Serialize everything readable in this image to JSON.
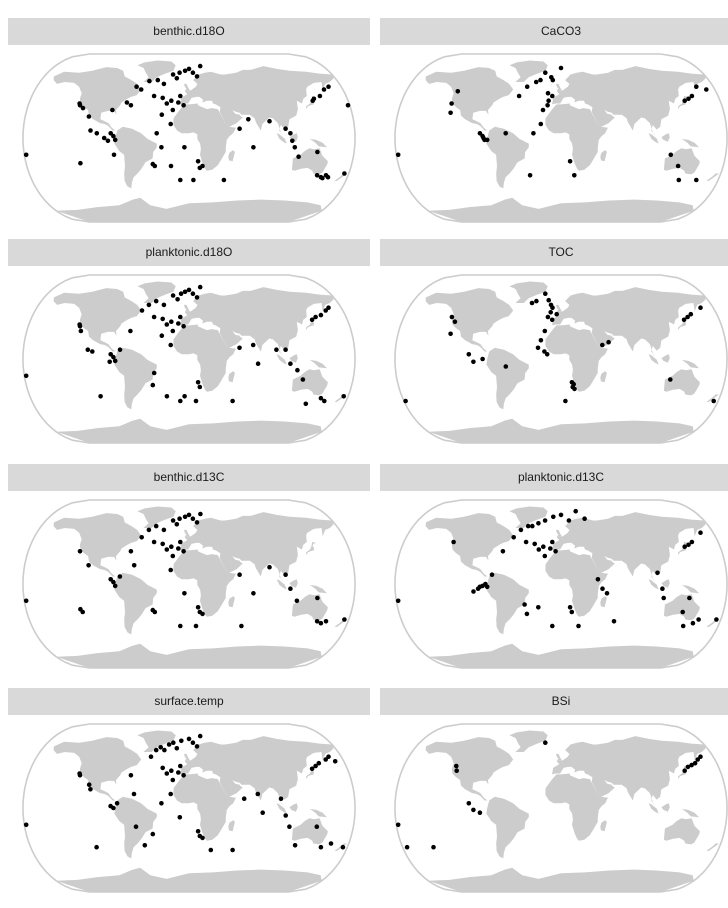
{
  "panels": [
    {
      "title": "benthic.d18O",
      "points": [
        [
          -123,
          37
        ],
        [
          -122,
          35
        ],
        [
          -118,
          32
        ],
        [
          -178,
          -18
        ],
        [
          -120,
          -27
        ],
        [
          -85,
          30
        ],
        [
          -62,
          55
        ],
        [
          -56,
          52
        ],
        [
          -48,
          61
        ],
        [
          -38,
          62
        ],
        [
          -30,
          58
        ],
        [
          -20,
          68
        ],
        [
          -15,
          64
        ],
        [
          -12,
          70
        ],
        [
          -5,
          72
        ],
        [
          0,
          74
        ],
        [
          5,
          70
        ],
        [
          10,
          66
        ],
        [
          15,
          77
        ],
        [
          -40,
          45
        ],
        [
          -30,
          43
        ],
        [
          -25,
          37
        ],
        [
          -20,
          40
        ],
        [
          -12,
          38
        ],
        [
          -6,
          35
        ],
        [
          -10,
          45
        ],
        [
          -18,
          30
        ],
        [
          -30,
          25
        ],
        [
          -20,
          15
        ],
        [
          -65,
          35
        ],
        [
          -70,
          38
        ],
        [
          -110,
          23
        ],
        [
          -107,
          8
        ],
        [
          -100,
          5
        ],
        [
          -85,
          5
        ],
        [
          -82,
          2
        ],
        [
          -80,
          -2
        ],
        [
          -88,
          -3
        ],
        [
          -92,
          0
        ],
        [
          -82,
          -18
        ],
        [
          -35,
          5
        ],
        [
          -30,
          -10
        ],
        [
          -40,
          -28
        ],
        [
          -38,
          -30
        ],
        [
          -20,
          -30
        ],
        [
          -5,
          -10
        ],
        [
          10,
          -25
        ],
        [
          15,
          -30
        ],
        [
          12,
          -32
        ],
        [
          5,
          -45
        ],
        [
          -10,
          -45
        ],
        [
          40,
          -45
        ],
        [
          55,
          10
        ],
        [
          65,
          20
        ],
        [
          70,
          -10
        ],
        [
          88,
          18
        ],
        [
          105,
          10
        ],
        [
          110,
          5
        ],
        [
          112,
          -3
        ],
        [
          115,
          -10
        ],
        [
          120,
          -20
        ],
        [
          140,
          -15
        ],
        [
          145,
          -40
        ],
        [
          150,
          -42
        ],
        [
          152,
          -43
        ],
        [
          155,
          -40
        ],
        [
          158,
          -42
        ],
        [
          175,
          -38
        ],
        [
          140,
          40
        ],
        [
          142,
          42
        ],
        [
          150,
          45
        ],
        [
          158,
          52
        ],
        [
          165,
          55
        ],
        [
          178,
          35
        ]
      ]
    },
    {
      "title": "CaCO3",
      "points": [
        [
          -123,
          37
        ],
        [
          -120,
          50
        ],
        [
          -122,
          27
        ],
        [
          -178,
          -18
        ],
        [
          -88,
          5
        ],
        [
          -85,
          2
        ],
        [
          -84,
          0
        ],
        [
          -83,
          -2
        ],
        [
          -80,
          -2
        ],
        [
          -60,
          5
        ],
        [
          -48,
          45
        ],
        [
          -40,
          55
        ],
        [
          -30,
          60
        ],
        [
          -25,
          62
        ],
        [
          -20,
          70
        ],
        [
          -12,
          65
        ],
        [
          -10,
          62
        ],
        [
          0,
          75
        ],
        [
          -15,
          48
        ],
        [
          -10,
          45
        ],
        [
          -14,
          40
        ],
        [
          -15,
          35
        ],
        [
          -20,
          30
        ],
        [
          -22,
          15
        ],
        [
          -30,
          5
        ],
        [
          10,
          -25
        ],
        [
          15,
          -40
        ],
        [
          -35,
          -40
        ],
        [
          120,
          -18
        ],
        [
          130,
          -30
        ],
        [
          135,
          -45
        ],
        [
          155,
          -45
        ],
        [
          140,
          40
        ],
        [
          145,
          42
        ],
        [
          150,
          45
        ],
        [
          160,
          55
        ],
        [
          170,
          52
        ]
      ]
    },
    {
      "title": "planktonic.d18O",
      "points": [
        [
          -123,
          37
        ],
        [
          -122,
          35
        ],
        [
          -120,
          30
        ],
        [
          -178,
          -18
        ],
        [
          -100,
          -40
        ],
        [
          -110,
          10
        ],
        [
          -105,
          8
        ],
        [
          -85,
          5
        ],
        [
          -82,
          2
        ],
        [
          -80,
          -2
        ],
        [
          -86,
          -3
        ],
        [
          -75,
          10
        ],
        [
          -65,
          30
        ],
        [
          -55,
          52
        ],
        [
          -48,
          58
        ],
        [
          -40,
          62
        ],
        [
          -30,
          58
        ],
        [
          -20,
          68
        ],
        [
          -14,
          64
        ],
        [
          -10,
          70
        ],
        [
          -5,
          72
        ],
        [
          0,
          74
        ],
        [
          5,
          70
        ],
        [
          10,
          66
        ],
        [
          15,
          77
        ],
        [
          -40,
          45
        ],
        [
          -30,
          43
        ],
        [
          -25,
          37
        ],
        [
          -20,
          40
        ],
        [
          -12,
          38
        ],
        [
          -6,
          35
        ],
        [
          -10,
          45
        ],
        [
          -18,
          30
        ],
        [
          -30,
          25
        ],
        [
          -20,
          15
        ],
        [
          -38,
          -15
        ],
        [
          -40,
          -28
        ],
        [
          -25,
          -40
        ],
        [
          -10,
          -45
        ],
        [
          -5,
          -40
        ],
        [
          10,
          -25
        ],
        [
          12,
          -30
        ],
        [
          8,
          -45
        ],
        [
          50,
          -45
        ],
        [
          55,
          12
        ],
        [
          70,
          15
        ],
        [
          75,
          -5
        ],
        [
          95,
          10
        ],
        [
          105,
          10
        ],
        [
          110,
          -5
        ],
        [
          118,
          -12
        ],
        [
          125,
          -22
        ],
        [
          135,
          -48
        ],
        [
          150,
          -42
        ],
        [
          155,
          -45
        ],
        [
          175,
          -40
        ],
        [
          140,
          42
        ],
        [
          145,
          45
        ],
        [
          152,
          47
        ],
        [
          160,
          52
        ],
        [
          165,
          55
        ]
      ]
    },
    {
      "title": "TOC",
      "points": [
        [
          -125,
          45
        ],
        [
          -120,
          40
        ],
        [
          -122,
          27
        ],
        [
          -178,
          -45
        ],
        [
          -100,
          5
        ],
        [
          -95,
          -3
        ],
        [
          -85,
          0
        ],
        [
          -60,
          -8
        ],
        [
          -35,
          60
        ],
        [
          -30,
          62
        ],
        [
          -20,
          70
        ],
        [
          -15,
          63
        ],
        [
          -12,
          58
        ],
        [
          -10,
          55
        ],
        [
          -5,
          48
        ],
        [
          -12,
          50
        ],
        [
          -15,
          45
        ],
        [
          -10,
          42
        ],
        [
          -18,
          30
        ],
        [
          -22,
          20
        ],
        [
          -25,
          12
        ],
        [
          -18,
          8
        ],
        [
          -15,
          5
        ],
        [
          12,
          -25
        ],
        [
          14,
          -27
        ],
        [
          13,
          -30
        ],
        [
          15,
          -32
        ],
        [
          5,
          -45
        ],
        [
          45,
          15
        ],
        [
          52,
          18
        ],
        [
          120,
          -22
        ],
        [
          140,
          42
        ],
        [
          145,
          45
        ],
        [
          150,
          48
        ],
        [
          165,
          55
        ],
        [
          175,
          -45
        ]
      ]
    },
    {
      "title": "benthic.d13C",
      "points": [
        [
          -122,
          35
        ],
        [
          -178,
          -18
        ],
        [
          -120,
          -27
        ],
        [
          -118,
          -30
        ],
        [
          -110,
          20
        ],
        [
          -85,
          5
        ],
        [
          -82,
          2
        ],
        [
          -80,
          -2
        ],
        [
          -75,
          8
        ],
        [
          -65,
          35
        ],
        [
          -60,
          20
        ],
        [
          -55,
          50
        ],
        [
          -48,
          58
        ],
        [
          -40,
          62
        ],
        [
          -30,
          58
        ],
        [
          -20,
          68
        ],
        [
          -15,
          64
        ],
        [
          -12,
          70
        ],
        [
          -5,
          72
        ],
        [
          0,
          74
        ],
        [
          5,
          70
        ],
        [
          10,
          66
        ],
        [
          15,
          75
        ],
        [
          -40,
          45
        ],
        [
          -30,
          43
        ],
        [
          -25,
          37
        ],
        [
          -20,
          40
        ],
        [
          -12,
          38
        ],
        [
          -6,
          35
        ],
        [
          -10,
          45
        ],
        [
          -18,
          30
        ],
        [
          -20,
          15
        ],
        [
          -40,
          -28
        ],
        [
          -38,
          -30
        ],
        [
          -10,
          -45
        ],
        [
          -5,
          -10
        ],
        [
          10,
          -25
        ],
        [
          12,
          -30
        ],
        [
          15,
          -32
        ],
        [
          8,
          -45
        ],
        [
          60,
          -45
        ],
        [
          55,
          10
        ],
        [
          70,
          -10
        ],
        [
          88,
          18
        ],
        [
          105,
          10
        ],
        [
          110,
          -5
        ],
        [
          118,
          -18
        ],
        [
          140,
          -15
        ],
        [
          145,
          -40
        ],
        [
          150,
          -42
        ],
        [
          155,
          -40
        ],
        [
          175,
          -38
        ]
      ]
    },
    {
      "title": "planktonic.d13C",
      "points": [
        [
          -123,
          45
        ],
        [
          -178,
          -18
        ],
        [
          -95,
          -8
        ],
        [
          -90,
          -5
        ],
        [
          -88,
          -3
        ],
        [
          -85,
          -2
        ],
        [
          -80,
          -3
        ],
        [
          -82,
          0
        ],
        [
          -75,
          10
        ],
        [
          -65,
          35
        ],
        [
          -55,
          50
        ],
        [
          -48,
          58
        ],
        [
          -40,
          62
        ],
        [
          -35,
          62
        ],
        [
          -28,
          65
        ],
        [
          -20,
          68
        ],
        [
          -10,
          72
        ],
        [
          0,
          74
        ],
        [
          10,
          68
        ],
        [
          20,
          78
        ],
        [
          30,
          70
        ],
        [
          -40,
          45
        ],
        [
          -30,
          43
        ],
        [
          -25,
          37
        ],
        [
          -20,
          40
        ],
        [
          -12,
          38
        ],
        [
          -6,
          35
        ],
        [
          -10,
          45
        ],
        [
          -18,
          30
        ],
        [
          -40,
          -22
        ],
        [
          -38,
          -32
        ],
        [
          -25,
          -25
        ],
        [
          -10,
          -45
        ],
        [
          10,
          -25
        ],
        [
          12,
          -30
        ],
        [
          20,
          -45
        ],
        [
          40,
          5
        ],
        [
          45,
          -5
        ],
        [
          50,
          -10
        ],
        [
          60,
          -40
        ],
        [
          105,
          12
        ],
        [
          110,
          -5
        ],
        [
          112,
          -15
        ],
        [
          140,
          -15
        ],
        [
          135,
          -30
        ],
        [
          140,
          -45
        ],
        [
          150,
          -42
        ],
        [
          155,
          -38
        ],
        [
          175,
          -38
        ],
        [
          140,
          40
        ],
        [
          145,
          42
        ],
        [
          150,
          45
        ],
        [
          165,
          55
        ]
      ]
    },
    {
      "title": "surface.temp",
      "points": [
        [
          -123,
          37
        ],
        [
          -122,
          35
        ],
        [
          -178,
          -18
        ],
        [
          -105,
          -42
        ],
        [
          -110,
          25
        ],
        [
          -108,
          20
        ],
        [
          -85,
          2
        ],
        [
          -82,
          0
        ],
        [
          -78,
          5
        ],
        [
          -65,
          35
        ],
        [
          -60,
          15
        ],
        [
          -58,
          -20
        ],
        [
          -50,
          -40
        ],
        [
          -45,
          55
        ],
        [
          -40,
          62
        ],
        [
          -35,
          65
        ],
        [
          -30,
          62
        ],
        [
          -25,
          68
        ],
        [
          -20,
          70
        ],
        [
          -15,
          64
        ],
        [
          -10,
          72
        ],
        [
          0,
          74
        ],
        [
          5,
          70
        ],
        [
          10,
          66
        ],
        [
          15,
          77
        ],
        [
          -30,
          43
        ],
        [
          -25,
          37
        ],
        [
          -20,
          40
        ],
        [
          -12,
          38
        ],
        [
          -6,
          35
        ],
        [
          -10,
          45
        ],
        [
          -18,
          30
        ],
        [
          -20,
          15
        ],
        [
          -30,
          5
        ],
        [
          -40,
          -28
        ],
        [
          -10,
          -10
        ],
        [
          10,
          -25
        ],
        [
          12,
          -30
        ],
        [
          15,
          -32
        ],
        [
          25,
          -45
        ],
        [
          50,
          -45
        ],
        [
          60,
          10
        ],
        [
          75,
          15
        ],
        [
          80,
          -5
        ],
        [
          100,
          10
        ],
        [
          105,
          -8
        ],
        [
          110,
          -20
        ],
        [
          120,
          -40
        ],
        [
          140,
          -20
        ],
        [
          150,
          -42
        ],
        [
          160,
          -38
        ],
        [
          175,
          -42
        ],
        [
          140,
          42
        ],
        [
          145,
          45
        ],
        [
          150,
          48
        ],
        [
          160,
          52
        ],
        [
          165,
          55
        ],
        [
          170,
          50
        ]
      ]
    },
    {
      "title": "BSi",
      "points": [
        [
          -120,
          45
        ],
        [
          -118,
          40
        ],
        [
          -178,
          -18
        ],
        [
          -175,
          -42
        ],
        [
          -145,
          -42
        ],
        [
          -100,
          5
        ],
        [
          -95,
          -2
        ],
        [
          -88,
          -5
        ],
        [
          -20,
          70
        ],
        [
          140,
          40
        ],
        [
          145,
          44
        ],
        [
          150,
          46
        ],
        [
          155,
          48
        ],
        [
          160,
          52
        ],
        [
          165,
          55
        ]
      ]
    }
  ]
}
